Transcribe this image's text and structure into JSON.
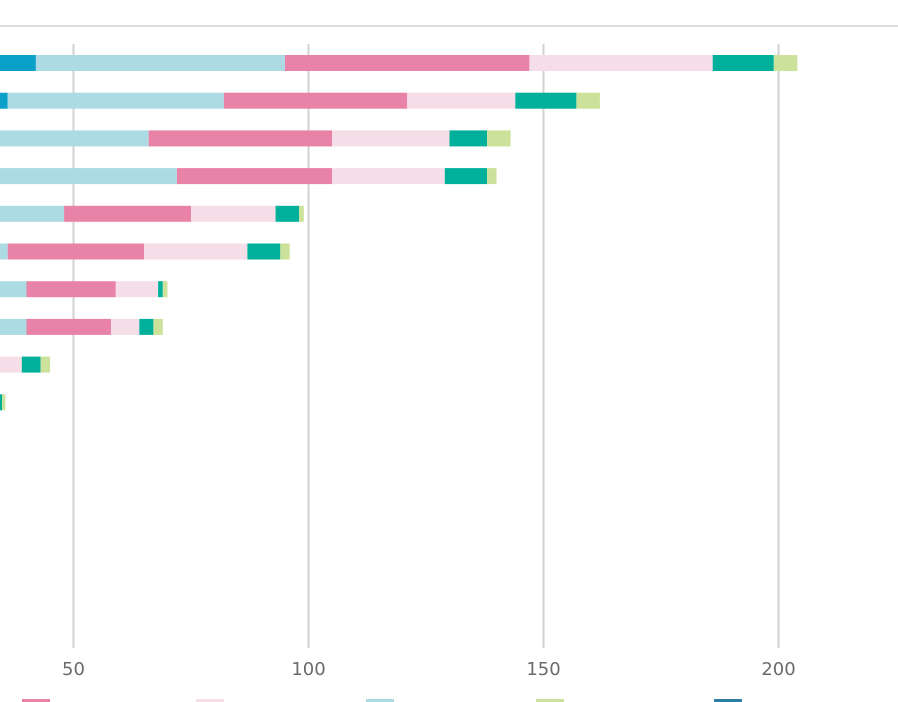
{
  "chart_data": {
    "type": "bar",
    "orientation": "horizontal",
    "stacked": true,
    "x_ticks": [
      50,
      100,
      150,
      200
    ],
    "x_tick_labels": [
      "50",
      "100",
      "150",
      "200"
    ],
    "xlim_visible": [
      34.5,
      225.5
    ],
    "grid": true,
    "legend_position": "bottom",
    "series": [
      {
        "color": "#0aa0c8",
        "values": [
          42,
          36,
          null,
          null,
          null,
          null,
          null,
          null,
          null,
          null
        ]
      },
      {
        "color": "#acdbe4",
        "values": [
          95,
          82,
          66,
          72,
          48,
          36,
          40,
          40,
          null,
          null
        ]
      },
      {
        "color": "#e982a7",
        "values": [
          147,
          121,
          105,
          105,
          75,
          65,
          59,
          58,
          null,
          null
        ]
      },
      {
        "color": "#f5dee7",
        "values": [
          186,
          144,
          130,
          129,
          93,
          87,
          68,
          64,
          39,
          null
        ]
      },
      {
        "color": "#00b09a",
        "values": [
          199,
          157,
          138,
          138,
          98,
          94,
          69,
          67,
          43,
          34.8
        ]
      },
      {
        "color": "#cce19a",
        "values": [
          204,
          162,
          143,
          140,
          99,
          96,
          70,
          69,
          45,
          35.5
        ]
      }
    ],
    "legend": [
      {
        "color": "#e982a7",
        "label": ""
      },
      {
        "color": "#f5dee7",
        "label": ""
      },
      {
        "color": "#acdbe4",
        "label": ""
      },
      {
        "color": "#cce19a",
        "label": ""
      },
      {
        "color": "#2a7fa6",
        "label": ""
      }
    ]
  }
}
